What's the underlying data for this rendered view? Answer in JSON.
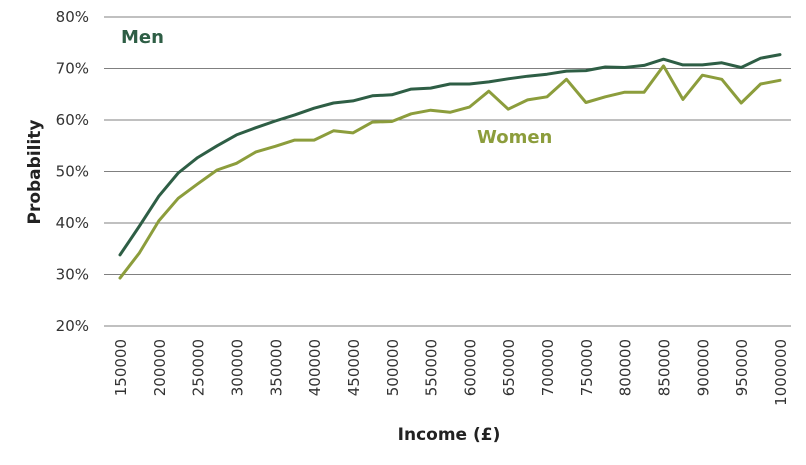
{
  "chart_data": {
    "type": "line",
    "xlabel": "Income (£)",
    "ylabel": "Probability",
    "ylim": [
      0.2,
      0.8
    ],
    "yticks": [
      "20%",
      "30%",
      "40%",
      "50%",
      "60%",
      "70%",
      "80%"
    ],
    "x": [
      150000,
      175000,
      200000,
      225000,
      250000,
      275000,
      300000,
      325000,
      350000,
      375000,
      400000,
      425000,
      450000,
      475000,
      500000,
      525000,
      550000,
      575000,
      600000,
      625000,
      650000,
      675000,
      700000,
      725000,
      750000,
      775000,
      800000,
      825000,
      850000,
      875000,
      900000,
      925000,
      950000,
      975000,
      1000000
    ],
    "xtick_labels": [
      "150000",
      "200000",
      "250000",
      "300000",
      "350000",
      "400000",
      "450000",
      "500000",
      "550000",
      "600000",
      "650000",
      "700000",
      "750000",
      "800000",
      "850000",
      "900000",
      "950000",
      "1000000"
    ],
    "grid": true,
    "series": [
      {
        "name": "Men",
        "color": "#2e5e45",
        "values": [
          0.338,
          0.394,
          0.452,
          0.497,
          0.527,
          0.55,
          0.571,
          0.585,
          0.598,
          0.61,
          0.623,
          0.633,
          0.637,
          0.647,
          0.649,
          0.66,
          0.662,
          0.67,
          0.67,
          0.674,
          0.68,
          0.685,
          0.689,
          0.695,
          0.696,
          0.703,
          0.702,
          0.706,
          0.718,
          0.707,
          0.707,
          0.711,
          0.702,
          0.72,
          0.727
        ]
      },
      {
        "name": "Women",
        "color": "#8c9d3c",
        "values": [
          0.293,
          0.342,
          0.404,
          0.448,
          0.476,
          0.503,
          0.516,
          0.538,
          0.549,
          0.561,
          0.561,
          0.579,
          0.575,
          0.596,
          0.597,
          0.612,
          0.619,
          0.615,
          0.625,
          0.656,
          0.621,
          0.639,
          0.645,
          0.679,
          0.634,
          0.645,
          0.654,
          0.654,
          0.705,
          0.64,
          0.687,
          0.679,
          0.633,
          0.67,
          0.677
        ]
      }
    ]
  }
}
